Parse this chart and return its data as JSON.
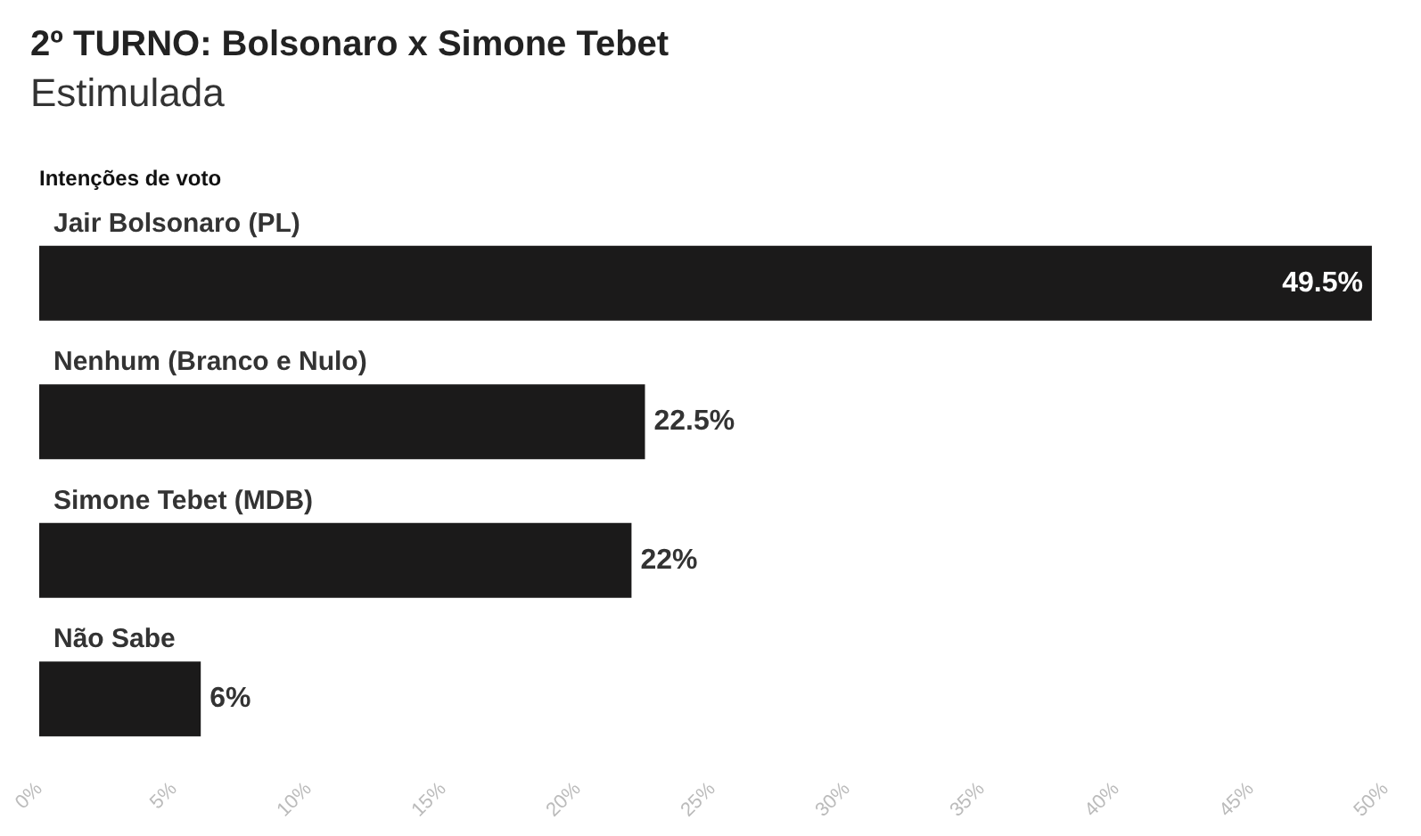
{
  "chart_data": {
    "type": "bar",
    "orientation": "horizontal",
    "title": "2º TURNO: Bolsonaro x Simone Tebet",
    "subtitle": "Estimulada",
    "ylabel": "Intenções de voto",
    "categories": [
      "Jair Bolsonaro (PL)",
      "Nenhum (Branco e Nulo)",
      "Simone Tebet (MDB)",
      "Não Sabe"
    ],
    "values": [
      49.5,
      22.5,
      22,
      6
    ],
    "color": "#1b1a1a",
    "value_labels": [
      "49.5%",
      "22.5%",
      "22%",
      "6%"
    ],
    "xlim": [
      0,
      50
    ],
    "xticks": [
      {
        "value": 0,
        "label": "0%"
      },
      {
        "value": 5,
        "label": "5%"
      },
      {
        "value": 10,
        "label": "10%"
      },
      {
        "value": 15,
        "label": "15%"
      },
      {
        "value": 20,
        "label": "20%"
      },
      {
        "value": 25,
        "label": "25%"
      },
      {
        "value": 30,
        "label": "30%"
      },
      {
        "value": 35,
        "label": "35%"
      },
      {
        "value": 40,
        "label": "40%"
      },
      {
        "value": 45,
        "label": "45%"
      },
      {
        "value": 50,
        "label": "50%"
      }
    ],
    "grid": false
  }
}
